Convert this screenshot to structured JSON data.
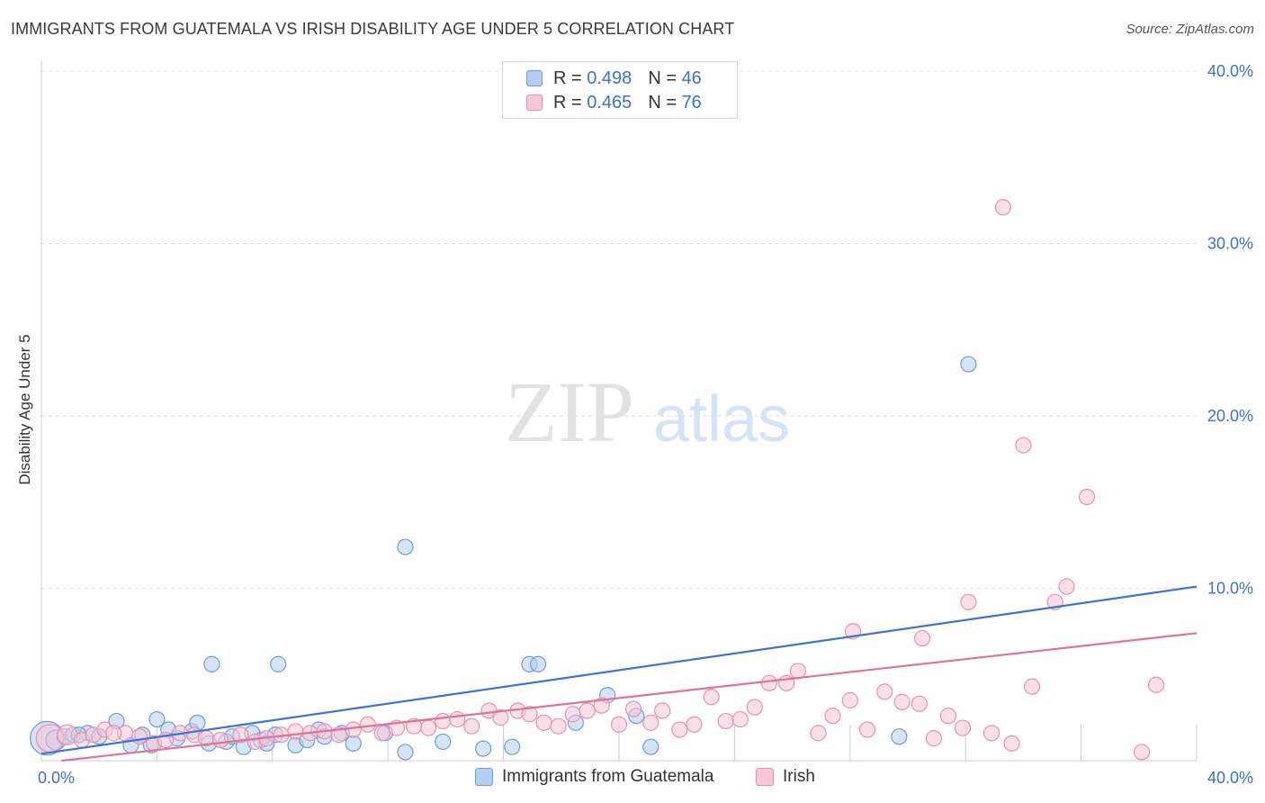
{
  "header": {
    "title": "IMMIGRANTS FROM GUATEMALA VS IRISH DISABILITY AGE UNDER 5 CORRELATION CHART",
    "source": "Source: ZipAtlas.com"
  },
  "watermark": {
    "zip": "ZIP",
    "atlas": "atlas"
  },
  "legend": {
    "rows": [
      {
        "r_label": "R =",
        "r_value": "0.498",
        "n_label": "N =",
        "n_value": "46"
      },
      {
        "r_label": "R =",
        "r_value": "0.465",
        "n_label": "N =",
        "n_value": "76"
      }
    ]
  },
  "colors": {
    "blue_fill": "#b3cef2",
    "blue_stroke": "#6f9be0",
    "blue_line": "#3b74d4",
    "pink_fill": "#fac6d6",
    "pink_stroke": "#ee8eac",
    "pink_line": "#e2709a",
    "axis_text": "#3b6fd4",
    "grid": "#dcdcdc"
  },
  "chart_data": {
    "type": "scatter",
    "title": "IMMIGRANTS FROM GUATEMALA VS IRISH DISABILITY AGE UNDER 5 CORRELATION CHART",
    "xlabel": "",
    "ylabel": "Disability Age Under 5",
    "xlim": [
      0,
      40
    ],
    "ylim": [
      0,
      40
    ],
    "x_ticks": [
      "0.0%",
      "40.0%"
    ],
    "y_ticks": [
      {
        "value": 10,
        "label": "10.0%"
      },
      {
        "value": 20,
        "label": "20.0%"
      },
      {
        "value": 30,
        "label": "30.0%"
      },
      {
        "value": 40,
        "label": "40.0%"
      }
    ],
    "series": [
      {
        "name": "Immigrants from Guatemala",
        "color": "blue",
        "R": 0.498,
        "N": 46,
        "trend": {
          "x": [
            0,
            40
          ],
          "y": [
            0.4,
            10.1
          ]
        },
        "points": [
          [
            0.2,
            1.3,
            2.2
          ],
          [
            0.5,
            1.2,
            1.3
          ],
          [
            0.8,
            1.4,
            1.0
          ],
          [
            1.1,
            1.5,
            1.0
          ],
          [
            1.6,
            1.6,
            1.0
          ],
          [
            2.0,
            1.4,
            1.0
          ],
          [
            2.6,
            2.3,
            1.0
          ],
          [
            3.1,
            0.9,
            1.0
          ],
          [
            3.5,
            1.5,
            1.0
          ],
          [
            4.0,
            2.4,
            1.0
          ],
          [
            4.4,
            1.8,
            1.0
          ],
          [
            3.8,
            0.9,
            1.0
          ],
          [
            4.7,
            1.3,
            1.0
          ],
          [
            5.2,
            1.7,
            1.0
          ],
          [
            5.4,
            2.2,
            1.0
          ],
          [
            5.8,
            1.0,
            1.0
          ],
          [
            6.4,
            1.1,
            1.0
          ],
          [
            6.6,
            1.4,
            1.0
          ],
          [
            7.0,
            0.8,
            1.0
          ],
          [
            7.6,
            1.2,
            1.0
          ],
          [
            7.3,
            1.6,
            1.0
          ],
          [
            7.8,
            1.0,
            1.0
          ],
          [
            8.1,
            1.5,
            1.0
          ],
          [
            8.8,
            0.9,
            1.0
          ],
          [
            9.2,
            1.2,
            1.0
          ],
          [
            9.6,
            1.8,
            1.0
          ],
          [
            9.8,
            1.4,
            1.0
          ],
          [
            10.4,
            1.6,
            1.0
          ],
          [
            10.8,
            1.0,
            1.0
          ],
          [
            11.9,
            1.6,
            1.0
          ],
          [
            12.6,
            0.5,
            1.0
          ],
          [
            13.9,
            1.1,
            1.0
          ],
          [
            15.3,
            0.7,
            1.0
          ],
          [
            16.3,
            0.8,
            1.0
          ],
          [
            16.9,
            5.6,
            1.0
          ],
          [
            17.2,
            5.6,
            1.0
          ],
          [
            18.5,
            2.2,
            1.0
          ],
          [
            19.6,
            3.8,
            1.0
          ],
          [
            20.6,
            2.6,
            1.0
          ],
          [
            21.1,
            0.8,
            1.0
          ],
          [
            5.9,
            5.6,
            1.0
          ],
          [
            8.2,
            5.6,
            1.0
          ],
          [
            12.6,
            12.4,
            1.0
          ],
          [
            29.7,
            1.4,
            1.0
          ],
          [
            32.1,
            23.0,
            1.0
          ],
          [
            1.3,
            1.5,
            1.0
          ]
        ]
      },
      {
        "name": "Irish",
        "color": "pink",
        "R": 0.465,
        "N": 76,
        "trend": {
          "x": [
            0.7,
            40
          ],
          "y": [
            0.0,
            7.4
          ]
        },
        "points": [
          [
            0.3,
            1.3,
            1.8
          ],
          [
            0.9,
            1.5,
            1.3
          ],
          [
            1.4,
            1.2,
            1.0
          ],
          [
            1.8,
            1.5,
            1.0
          ],
          [
            2.2,
            1.8,
            1.0
          ],
          [
            2.9,
            1.6,
            1.0
          ],
          [
            3.4,
            1.4,
            1.0
          ],
          [
            3.9,
            1.0,
            1.0
          ],
          [
            4.3,
            1.2,
            1.0
          ],
          [
            4.8,
            1.6,
            1.0
          ],
          [
            5.3,
            1.5,
            1.0
          ],
          [
            5.7,
            1.3,
            1.0
          ],
          [
            6.2,
            1.2,
            1.0
          ],
          [
            6.9,
            1.5,
            1.0
          ],
          [
            7.4,
            1.1,
            1.0
          ],
          [
            7.8,
            1.3,
            1.0
          ],
          [
            8.3,
            1.5,
            1.0
          ],
          [
            8.8,
            1.7,
            1.0
          ],
          [
            9.3,
            1.6,
            1.0
          ],
          [
            9.8,
            1.7,
            1.0
          ],
          [
            10.3,
            1.5,
            1.0
          ],
          [
            10.8,
            1.8,
            1.0
          ],
          [
            11.3,
            2.1,
            1.0
          ],
          [
            11.8,
            1.6,
            1.0
          ],
          [
            12.3,
            1.9,
            1.0
          ],
          [
            12.9,
            2.0,
            1.0
          ],
          [
            13.4,
            1.9,
            1.0
          ],
          [
            13.9,
            2.3,
            1.0
          ],
          [
            14.4,
            2.4,
            1.0
          ],
          [
            14.9,
            2.0,
            1.0
          ],
          [
            15.5,
            2.9,
            1.0
          ],
          [
            15.9,
            2.5,
            1.0
          ],
          [
            16.5,
            2.9,
            1.0
          ],
          [
            16.9,
            2.7,
            1.0
          ],
          [
            17.4,
            2.2,
            1.0
          ],
          [
            17.9,
            2.0,
            1.0
          ],
          [
            18.4,
            2.7,
            1.0
          ],
          [
            18.9,
            2.9,
            1.0
          ],
          [
            19.4,
            3.2,
            1.0
          ],
          [
            20.0,
            2.1,
            1.0
          ],
          [
            20.5,
            3.0,
            1.0
          ],
          [
            21.1,
            2.2,
            1.0
          ],
          [
            21.5,
            2.9,
            1.0
          ],
          [
            22.1,
            1.8,
            1.0
          ],
          [
            22.6,
            2.1,
            1.0
          ],
          [
            23.2,
            3.7,
            1.0
          ],
          [
            23.7,
            2.3,
            1.0
          ],
          [
            24.2,
            2.4,
            1.0
          ],
          [
            24.7,
            3.1,
            1.0
          ],
          [
            25.2,
            4.5,
            1.0
          ],
          [
            25.8,
            4.5,
            1.0
          ],
          [
            26.2,
            5.2,
            1.0
          ],
          [
            26.9,
            1.6,
            1.0
          ],
          [
            27.4,
            2.6,
            1.0
          ],
          [
            28.0,
            3.5,
            1.0
          ],
          [
            28.6,
            1.8,
            1.0
          ],
          [
            29.2,
            4.0,
            1.0
          ],
          [
            29.8,
            3.4,
            1.0
          ],
          [
            30.4,
            3.3,
            1.0
          ],
          [
            30.9,
            1.3,
            1.0
          ],
          [
            31.4,
            2.6,
            1.0
          ],
          [
            31.9,
            1.9,
            1.0
          ],
          [
            32.9,
            1.6,
            1.0
          ],
          [
            33.6,
            1.0,
            1.0
          ],
          [
            34.3,
            4.3,
            1.0
          ],
          [
            35.1,
            9.2,
            1.0
          ],
          [
            35.5,
            10.1,
            1.0
          ],
          [
            36.2,
            15.3,
            1.0
          ],
          [
            38.1,
            0.5,
            1.0
          ],
          [
            38.6,
            4.4,
            1.0
          ],
          [
            28.1,
            7.5,
            1.0
          ],
          [
            30.5,
            7.1,
            1.0
          ],
          [
            32.1,
            9.2,
            1.0
          ],
          [
            33.3,
            32.1,
            1.0
          ],
          [
            34.0,
            18.3,
            1.0
          ],
          [
            2.5,
            1.6,
            1.0
          ]
        ]
      }
    ]
  },
  "bottom_legend": {
    "items": [
      {
        "label": "Immigrants from Guatemala"
      },
      {
        "label": "Irish"
      }
    ]
  }
}
